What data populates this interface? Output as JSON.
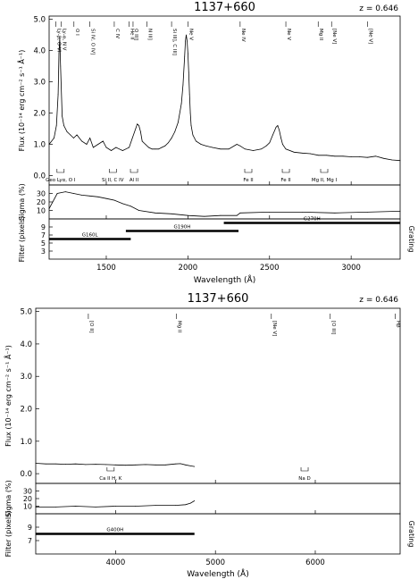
{
  "chart_data": [
    {
      "type": "line",
      "title": "1137+660",
      "redshift": "z = 0.646",
      "xlabel": "Wavelength (Å)",
      "xlim": [
        1150,
        3300
      ],
      "x_ticks": [
        1500,
        2000,
        2500,
        3000
      ],
      "flux_panel": {
        "ylabel": "Flux (10⁻¹⁴ erg cm⁻² s⁻¹ Å⁻¹)",
        "ylim": [
          -0.3,
          5.1
        ],
        "y_ticks": [
          "0.0",
          "1.0",
          "2.0",
          "3.0",
          "4.0",
          "5.0"
        ],
        "y_tick_values": [
          0,
          1,
          2,
          3,
          4,
          5
        ],
        "series": [
          {
            "x": [
              1150,
              1180,
              1195,
              1205,
              1210,
              1215,
              1220,
              1230,
              1240,
              1260,
              1280,
              1300,
              1320,
              1350,
              1380,
              1400,
              1420,
              1450,
              1480,
              1500,
              1530,
              1560,
              1580,
              1600,
              1620,
              1640,
              1660,
              1680,
              1690,
              1700,
              1710,
              1720,
              1740,
              1760,
              1780,
              1800,
              1820,
              1840,
              1860,
              1880,
              1900,
              1920,
              1940,
              1960,
              1970,
              1980,
              1985,
              1990,
              1995,
              2000,
              2005,
              2010,
              2015,
              2020,
              2030,
              2050,
              2080,
              2110,
              2150,
              2200,
              2250,
              2300,
              2320,
              2350,
              2400,
              2450,
              2480,
              2500,
              2520,
              2540,
              2550,
              2560,
              2570,
              2580,
              2600,
              2650,
              2700,
              2750,
              2800,
              2850,
              2900,
              2950,
              3000,
              3050,
              3100,
              3150,
              3200,
              3250,
              3300
            ],
            "y": [
              1.0,
              1.2,
              1.6,
              2.6,
              3.9,
              4.4,
              3.5,
              1.9,
              1.6,
              1.4,
              1.3,
              1.2,
              1.3,
              1.1,
              1.0,
              1.2,
              0.9,
              1.0,
              1.1,
              0.9,
              0.8,
              0.9,
              0.85,
              0.8,
              0.85,
              0.9,
              1.2,
              1.5,
              1.65,
              1.6,
              1.4,
              1.1,
              1.0,
              0.9,
              0.85,
              0.85,
              0.85,
              0.9,
              0.95,
              1.05,
              1.2,
              1.4,
              1.7,
              2.3,
              2.9,
              3.8,
              4.3,
              4.5,
              4.3,
              3.9,
              3.3,
              2.6,
              2.0,
              1.6,
              1.3,
              1.1,
              1.0,
              0.95,
              0.9,
              0.85,
              0.85,
              1.0,
              0.95,
              0.85,
              0.8,
              0.85,
              0.95,
              1.05,
              1.3,
              1.55,
              1.6,
              1.45,
              1.2,
              1.0,
              0.85,
              0.75,
              0.72,
              0.7,
              0.65,
              0.65,
              0.62,
              0.62,
              0.6,
              0.6,
              0.58,
              0.62,
              0.55,
              0.5,
              0.48
            ]
          }
        ]
      },
      "line_labels": [
        {
          "text": "Ly-β, O VI",
          "x": 1190
        },
        {
          "text": "Ly-α, N V",
          "x": 1225
        },
        {
          "text": "O I",
          "x": 1302
        },
        {
          "text": "Si IV, O IV]",
          "x": 1398
        },
        {
          "text": "C IV",
          "x": 1549
        },
        {
          "text": "He II",
          "x": 1640
        },
        {
          "text": "O III]",
          "x": 1664
        },
        {
          "text": "N III]",
          "x": 1750
        },
        {
          "text": "Si III], C III]",
          "x": 1900
        },
        {
          "text": "Ne V",
          "x": 2000
        },
        {
          "text": "Ne IV",
          "x": 2320
        },
        {
          "text": "Ne V",
          "x": 2600
        },
        {
          "text": "Mg II",
          "x": 2798
        },
        {
          "text": "[Ne V]",
          "x": 2880
        },
        {
          "text": "[Ne V]",
          "x": 3100
        }
      ],
      "absorption_labels": [
        {
          "text": "Geo Lyα, O I",
          "x": 1220
        },
        {
          "text": "Si II, C IV",
          "x": 1540
        },
        {
          "text": "Al II",
          "x": 1670
        },
        {
          "text": "Fe II",
          "x": 2370
        },
        {
          "text": "Fe II",
          "x": 2600
        },
        {
          "text": "Mg II, Mg I",
          "x": 2835
        }
      ],
      "sigma_panel": {
        "ylabel": "Sigma (%)",
        "y_ticks": [
          "10",
          "20",
          "30"
        ],
        "y_tick_values": [
          10,
          20,
          30
        ],
        "ylim": [
          0,
          40
        ],
        "series": [
          {
            "x": [
              1150,
              1200,
              1250,
              1300,
              1350,
              1400,
              1450,
              1500,
              1550,
              1600,
              1650,
              1700,
              1800,
              1900,
              2000,
              2100,
              2200,
              2300,
              2320,
              2500,
              2700,
              2900,
              3100,
              3300
            ],
            "y": [
              12,
              30,
              32,
              30,
              28,
              27,
              26,
              24,
              22,
              18,
              15,
              10,
              7,
              6,
              4,
              3,
              4,
              4,
              7,
              8,
              8,
              7,
              8,
              9
            ]
          }
        ]
      },
      "filter_panel": {
        "ylabel": "Filter (pixels)",
        "right_label": "Grating",
        "y_ticks": [
          "3",
          "5",
          "7",
          "9"
        ],
        "y_tick_values": [
          3,
          5,
          7,
          9
        ],
        "ylim": [
          1,
          11
        ],
        "segments": [
          {
            "label": "G160L",
            "x0": 1150,
            "x1": 1650,
            "level": 6
          },
          {
            "label": "G190H",
            "x0": 1620,
            "x1": 2310,
            "level": 8
          },
          {
            "label": "G270H",
            "x0": 2220,
            "x1": 3300,
            "level": 10
          }
        ]
      }
    },
    {
      "type": "line",
      "title": "1137+660",
      "redshift": "z = 0.646",
      "xlabel": "Wavelength (Å)",
      "xlim": [
        3200,
        6850
      ],
      "x_ticks": [
        4000,
        5000,
        6000
      ],
      "flux_panel": {
        "ylabel": "Flux (10⁻¹⁴ erg cm⁻² s⁻¹ Å⁻¹)",
        "ylim": [
          -0.3,
          5.1
        ],
        "y_ticks": [
          "0.0",
          "1.0",
          "2.0",
          "3.0",
          "4.0",
          "5.0"
        ],
        "y_tick_values": [
          0,
          1,
          2,
          3,
          4,
          5
        ],
        "series": [
          {
            "x": [
              3200,
              3300,
              3400,
              3500,
              3600,
              3700,
              3800,
              3900,
              4000,
              4100,
              4200,
              4300,
              4400,
              4500,
              4600,
              4650,
              4700,
              4750,
              4790
            ],
            "y": [
              0.32,
              0.3,
              0.3,
              0.29,
              0.3,
              0.28,
              0.29,
              0.28,
              0.27,
              0.26,
              0.27,
              0.28,
              0.27,
              0.27,
              0.3,
              0.31,
              0.27,
              0.24,
              0.22
            ]
          }
        ]
      },
      "line_labels": [
        {
          "text": "[O II]",
          "x": 3727
        },
        {
          "text": "Mg II",
          "x": 4610
        },
        {
          "text": "[Ne V]",
          "x": 5560
        },
        {
          "text": "[O III]",
          "x": 6150
        },
        {
          "text": "Hβ",
          "x": 6800
        }
      ],
      "absorption_labels": [
        {
          "text": "Ca II H, K",
          "x": 3950
        },
        {
          "text": "Na D",
          "x": 5893
        }
      ],
      "sigma_panel": {
        "ylabel": "Sigma (%)",
        "y_ticks": [
          "10",
          "20",
          "30"
        ],
        "y_tick_values": [
          10,
          20,
          30
        ],
        "ylim": [
          0,
          40
        ],
        "series": [
          {
            "x": [
              3200,
              3400,
              3600,
              3800,
              4000,
              4200,
              4400,
              4600,
              4700,
              4750,
              4790
            ],
            "y": [
              9,
              9,
              10,
              9,
              10,
              10,
              11,
              11,
              12,
              14,
              17
            ]
          }
        ]
      },
      "filter_panel": {
        "ylabel": "Filter (pixels)",
        "right_label": "Grating",
        "y_ticks": [
          "7",
          "9"
        ],
        "y_tick_values": [
          7,
          9
        ],
        "ylim": [
          5,
          11
        ],
        "segments": [
          {
            "label": "G400H",
            "x0": 3200,
            "x1": 4790,
            "level": 8
          }
        ]
      }
    }
  ]
}
